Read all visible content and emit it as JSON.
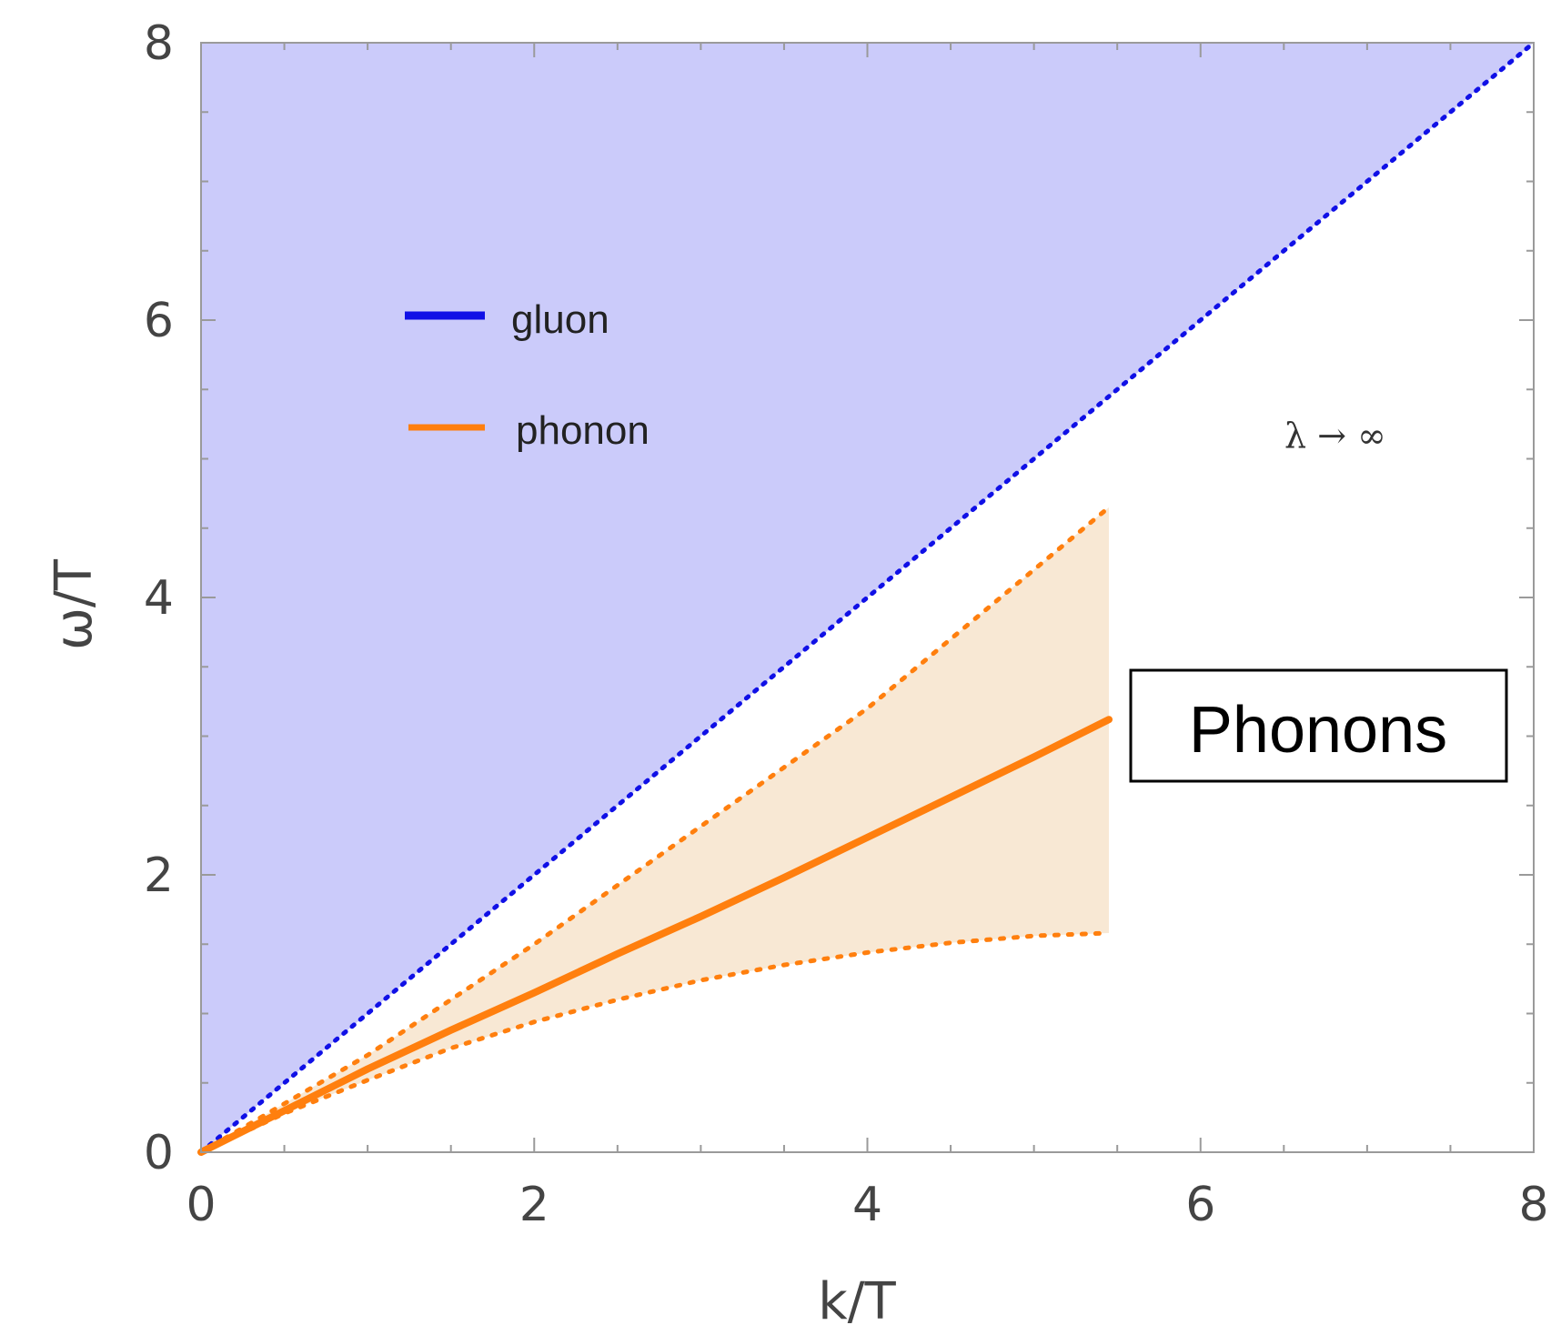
{
  "chart_data": {
    "type": "area",
    "xlabel": "k/T",
    "ylabel": "ω/T",
    "xlim": [
      0,
      8
    ],
    "ylim": [
      0,
      8
    ],
    "xticks": [
      "0",
      "2",
      "4",
      "6",
      "8"
    ],
    "yticks": [
      "0",
      "2",
      "4",
      "6",
      "8"
    ],
    "legend": {
      "position": "upper-left",
      "entries": [
        "gluon",
        "phonon"
      ]
    },
    "annotation": "λ → ∞",
    "boxed_label": "Phonons",
    "colors": {
      "gluon": "#1010e6",
      "gluon_fill": "#cbcbfa",
      "phonon": "#ff7f0e",
      "phonon_fill": "#f8e8d4",
      "axis": "#9a9a9a"
    },
    "series": [
      {
        "name": "gluon",
        "style": "dotted",
        "x": [
          0,
          8
        ],
        "y": [
          0,
          8
        ],
        "fill_region": "between line ω = k and ω = 8 for k ≥ 0"
      },
      {
        "name": "phonon",
        "style": "solid",
        "x": [
          0,
          0.5,
          1,
          1.5,
          2,
          2.5,
          3,
          3.5,
          4,
          4.5,
          5,
          5.45
        ],
        "y": [
          0,
          0.3,
          0.6,
          0.88,
          1.15,
          1.43,
          1.7,
          1.98,
          2.27,
          2.56,
          2.85,
          3.12
        ]
      },
      {
        "name": "phonon upper bound",
        "style": "dotted",
        "x": [
          0,
          1,
          2,
          3,
          4,
          5,
          5.45
        ],
        "y": [
          0,
          0.7,
          1.5,
          2.35,
          3.2,
          4.2,
          4.65
        ]
      },
      {
        "name": "phonon lower bound",
        "style": "dotted",
        "x": [
          0,
          0.5,
          1,
          1.5,
          2,
          2.5,
          3,
          3.5,
          4,
          4.5,
          5,
          5.45
        ],
        "y": [
          0,
          0.28,
          0.52,
          0.75,
          0.94,
          1.1,
          1.24,
          1.35,
          1.44,
          1.51,
          1.56,
          1.58
        ]
      }
    ]
  }
}
